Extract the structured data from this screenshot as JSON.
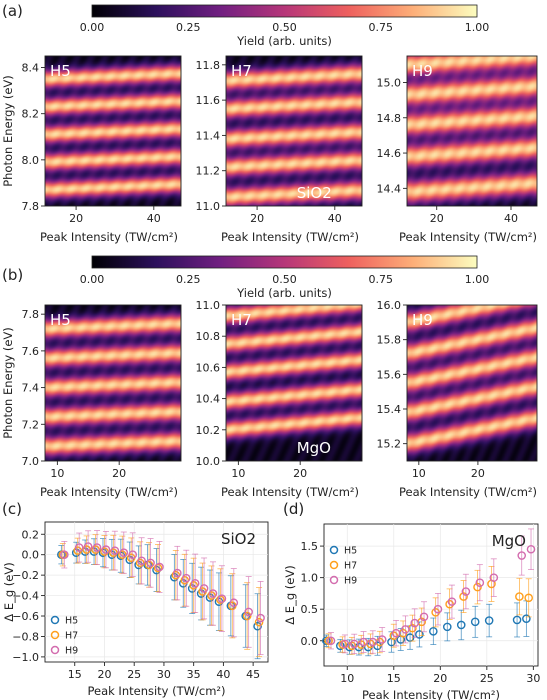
{
  "panel_labels": [
    "(a)",
    "(b)",
    "(c)",
    "(d)"
  ],
  "colorbar": {
    "label": "Yield (arb. units)",
    "ticks": [
      "0.00",
      "0.25",
      "0.50",
      "0.75",
      "1.00"
    ],
    "stops": [
      "#000004",
      "#2c105c",
      "#711f81",
      "#b63679",
      "#ee605e",
      "#fdae78",
      "#fcfdbf"
    ]
  },
  "chart_data": [
    {
      "type": "heatmap",
      "panel": "a",
      "harmonic": "H5",
      "material": "",
      "xlabel": "Peak Intensity (TW/cm²)",
      "ylabel": "Photon Energy (eV)",
      "xlim": [
        12,
        47
      ],
      "ylim": [
        7.8,
        8.45
      ],
      "xticks": [
        "20",
        "40"
      ],
      "yticks": [
        "7.8",
        "8.0",
        "8.2",
        "8.4"
      ],
      "bands_y": [
        7.87,
        7.99,
        8.11,
        8.23,
        8.35
      ],
      "band_slope": 0.025
    },
    {
      "type": "heatmap",
      "panel": "a",
      "harmonic": "H7",
      "material": "SiO2",
      "xlabel": "Peak Intensity (TW/cm²)",
      "ylabel": "",
      "xlim": [
        12,
        47
      ],
      "ylim": [
        11.0,
        11.85
      ],
      "xticks": [
        "20",
        "40"
      ],
      "yticks": [
        "11.0",
        "11.2",
        "11.4",
        "11.6",
        "11.8"
      ],
      "bands_y": [
        11.05,
        11.22,
        11.38,
        11.55,
        11.71
      ],
      "band_slope": 0.04
    },
    {
      "type": "heatmap",
      "panel": "a",
      "harmonic": "H9",
      "material": "",
      "xlabel": "Peak Intensity (TW/cm²)",
      "ylabel": "",
      "xlim": [
        12,
        47
      ],
      "ylim": [
        14.3,
        15.15
      ],
      "xticks": [
        "20",
        "40"
      ],
      "yticks": [
        "14.4",
        "14.6",
        "14.8",
        "15.0"
      ],
      "bands_y": [
        14.38,
        14.58,
        14.76,
        14.93,
        15.1
      ],
      "band_slope": 0.05
    },
    {
      "type": "heatmap",
      "panel": "b",
      "harmonic": "H5",
      "material": "",
      "xlabel": "Peak Intensity (TW/cm²)",
      "ylabel": "Photon Energy (eV)",
      "xlim": [
        8,
        30
      ],
      "ylim": [
        7.0,
        7.85
      ],
      "xticks": [
        "10",
        "20"
      ],
      "yticks": [
        "7.0",
        "7.2",
        "7.4",
        "7.6",
        "7.8"
      ],
      "bands_y": [
        7.08,
        7.24,
        7.4,
        7.56,
        7.72
      ],
      "band_slope": 0.03
    },
    {
      "type": "heatmap",
      "panel": "b",
      "harmonic": "H7",
      "material": "MgO",
      "xlabel": "Peak Intensity (TW/cm²)",
      "ylabel": "",
      "xlim": [
        8,
        30
      ],
      "ylim": [
        10.0,
        11.0
      ],
      "xticks": [
        "10",
        "20"
      ],
      "yticks": [
        "10.0",
        "10.2",
        "10.4",
        "10.6",
        "10.8",
        "11.0"
      ],
      "bands_y": [
        10.2,
        10.38,
        10.57,
        10.75,
        10.93
      ],
      "band_slope": 0.08
    },
    {
      "type": "heatmap",
      "panel": "b",
      "harmonic": "H9",
      "material": "",
      "xlabel": "Peak Intensity (TW/cm²)",
      "ylabel": "",
      "xlim": [
        8,
        30
      ],
      "ylim": [
        15.1,
        16.0
      ],
      "xticks": [
        "10",
        "20"
      ],
      "yticks": [
        "15.2",
        "15.4",
        "15.6",
        "15.8",
        "16.0"
      ],
      "bands_y": [
        15.2,
        15.38,
        15.55,
        15.72,
        15.9
      ],
      "band_slope": 0.15
    },
    {
      "type": "scatter",
      "panel": "c",
      "material": "SiO2",
      "xlabel": "Peak Intensity (TW/cm²)",
      "ylabel": "Δ E_g (eV)",
      "xlim": [
        10,
        47.5
      ],
      "ylim": [
        -1.05,
        0.32
      ],
      "xticks": [
        "15",
        "20",
        "25",
        "30",
        "35",
        "40",
        "45"
      ],
      "yticks": [
        "0.2",
        "0.0",
        "−0.2",
        "−0.4",
        "−0.6",
        "−0.8",
        "−1.0"
      ],
      "legend_position": "lower-left",
      "x": [
        13,
        15.5,
        17,
        18.5,
        20,
        21.5,
        23,
        24.5,
        26,
        27.5,
        29,
        32,
        33.5,
        35,
        36.5,
        38,
        39.5,
        41.5,
        44,
        46
      ],
      "series": [
        {
          "name": "H5",
          "color": "#1f77b4",
          "values": [
            0,
            0.02,
            0.03,
            0.03,
            0.02,
            0.0,
            -0.01,
            -0.05,
            -0.1,
            -0.1,
            -0.15,
            -0.22,
            -0.28,
            -0.33,
            -0.38,
            -0.42,
            -0.46,
            -0.5,
            -0.6,
            -0.7
          ]
        },
        {
          "name": "H7",
          "color": "#ff9f1c",
          "values": [
            0,
            0.04,
            0.05,
            0.05,
            0.03,
            0.02,
            0.0,
            -0.03,
            -0.08,
            -0.1,
            -0.13,
            -0.2,
            -0.25,
            -0.3,
            -0.36,
            -0.4,
            -0.44,
            -0.5,
            -0.6,
            -0.66
          ]
        },
        {
          "name": "H9",
          "color": "#d36cae",
          "values": [
            0,
            0.07,
            0.08,
            0.07,
            0.05,
            0.04,
            0.02,
            0.0,
            -0.06,
            -0.08,
            -0.12,
            -0.18,
            -0.23,
            -0.28,
            -0.33,
            -0.38,
            -0.43,
            -0.47,
            -0.56,
            -0.62
          ]
        }
      ]
    },
    {
      "type": "scatter",
      "panel": "d",
      "material": "MgO",
      "xlabel": "Peak Intensity (TW/cm²)",
      "ylabel": "Δ E_g (eV)",
      "xlim": [
        7.5,
        30.5
      ],
      "ylim": [
        -0.4,
        1.85
      ],
      "xticks": [
        "10",
        "15",
        "20",
        "25",
        "30"
      ],
      "yticks": [
        "0.0",
        "0.5",
        "1.0",
        "1.5"
      ],
      "legend_position": "upper-left",
      "x": [
        8,
        9.5,
        10.5,
        11.5,
        12.5,
        13.5,
        15,
        16,
        17,
        18,
        19.5,
        21,
        22.5,
        24,
        25.5,
        28.5,
        29.5
      ],
      "series": [
        {
          "name": "H5",
          "color": "#1f77b4",
          "values": [
            0,
            -0.08,
            -0.1,
            -0.1,
            -0.1,
            -0.08,
            -0.02,
            0.02,
            0.05,
            0.1,
            0.15,
            0.22,
            0.25,
            0.3,
            0.32,
            0.33,
            0.35
          ]
        },
        {
          "name": "H7",
          "color": "#ff9f1c",
          "values": [
            0,
            -0.06,
            -0.08,
            -0.06,
            -0.05,
            -0.02,
            0.08,
            0.12,
            0.2,
            0.3,
            0.45,
            0.58,
            0.7,
            0.85,
            0.9,
            0.7,
            0.68
          ]
        },
        {
          "name": "H9",
          "color": "#d36cae",
          "values": [
            0,
            -0.05,
            -0.05,
            -0.02,
            -0.02,
            0.02,
            0.12,
            0.18,
            0.28,
            0.38,
            0.5,
            0.62,
            0.78,
            0.92,
            1.0,
            1.35,
            1.45
          ]
        }
      ]
    }
  ]
}
